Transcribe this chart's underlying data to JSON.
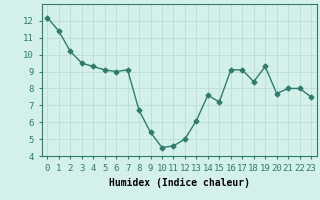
{
  "x": [
    0,
    1,
    2,
    3,
    4,
    5,
    6,
    7,
    8,
    9,
    10,
    11,
    12,
    13,
    14,
    15,
    16,
    17,
    18,
    19,
    20,
    21,
    22,
    23
  ],
  "y": [
    12.2,
    11.4,
    10.2,
    9.5,
    9.3,
    9.1,
    9.0,
    9.1,
    6.7,
    5.4,
    4.5,
    4.6,
    5.0,
    6.1,
    7.6,
    7.2,
    9.1,
    9.1,
    8.4,
    9.3,
    7.7,
    8.0,
    8.0,
    7.5
  ],
  "xlabel": "Humidex (Indice chaleur)",
  "line_color": "#2d7d6e",
  "marker": "D",
  "marker_size": 2.5,
  "line_width": 1.0,
  "bg_color": "#d4f0eb",
  "grid_color": "#b8d8d2",
  "ylim": [
    4,
    13
  ],
  "xlim": [
    -0.5,
    23.5
  ],
  "yticks": [
    4,
    5,
    6,
    7,
    8,
    9,
    10,
    11,
    12
  ],
  "xtick_labels": [
    "0",
    "1",
    "2",
    "3",
    "4",
    "5",
    "6",
    "7",
    "8",
    "9",
    "10",
    "11",
    "12",
    "13",
    "14",
    "15",
    "16",
    "17",
    "18",
    "19",
    "20",
    "21",
    "22",
    "23"
  ],
  "xlabel_fontsize": 7,
  "tick_fontsize": 6.5
}
